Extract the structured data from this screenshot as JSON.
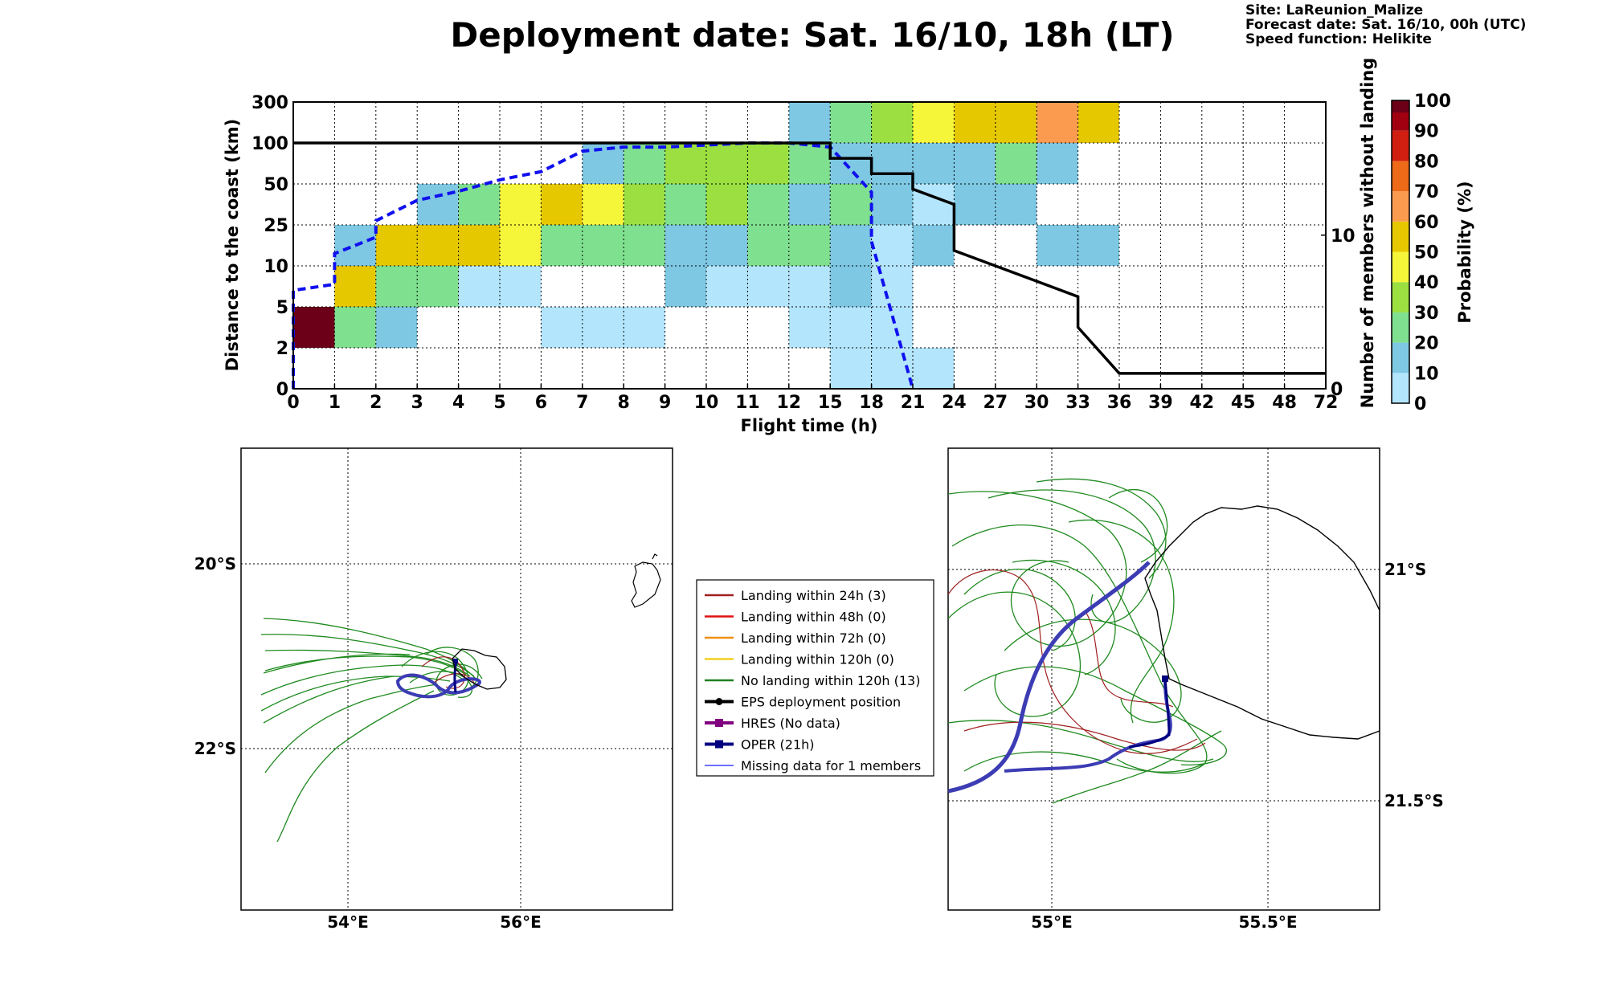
{
  "title": "Deployment date: Sat. 16/10, 18h (LT)",
  "info": {
    "site": "Site: LaReunion_Malize",
    "forecast": "Forecast date: Sat. 16/10, 00h (UTC)",
    "speed": "Speed function: Helikite"
  },
  "chart_data": {
    "type": "heatmap",
    "xlabel": "Flight time (h)",
    "ylabel": "Distance to the coast (km)",
    "ylabel_right": "Number of members without landing",
    "x_ticks": [
      "0",
      "1",
      "2",
      "3",
      "4",
      "5",
      "6",
      "7",
      "8",
      "9",
      "10",
      "11",
      "12",
      "15",
      "18",
      "21",
      "24",
      "27",
      "30",
      "33",
      "36",
      "39",
      "42",
      "45",
      "48",
      "72"
    ],
    "y_ticks": [
      "0",
      "2",
      "5",
      "10",
      "25",
      "50",
      "100",
      "300"
    ],
    "right_ticks": [
      "0",
      "10"
    ],
    "grid": true,
    "colorbar": {
      "label": "Probability (%)",
      "ticks": [
        "0",
        "10",
        "20",
        "30",
        "40",
        "50",
        "60",
        "70",
        "80",
        "90",
        "100"
      ],
      "bins": [
        {
          "range": [
            0,
            10
          ],
          "color": "#b3e5fc"
        },
        {
          "range": [
            10,
            20
          ],
          "color": "#7ec8e3"
        },
        {
          "range": [
            20,
            30
          ],
          "color": "#7fe08f"
        },
        {
          "range": [
            30,
            40
          ],
          "color": "#9be040"
        },
        {
          "range": [
            40,
            50
          ],
          "color": "#f5f53a"
        },
        {
          "range": [
            50,
            60
          ],
          "color": "#e6c800"
        },
        {
          "range": [
            60,
            70
          ],
          "color": "#fb9b50"
        },
        {
          "range": [
            70,
            80
          ],
          "color": "#ec6a18"
        },
        {
          "range": [
            80,
            90
          ],
          "color": "#d01f10"
        },
        {
          "range": [
            90,
            100
          ],
          "color": "#a00010"
        },
        {
          "range": [
            100,
            100
          ],
          "color": "#6b0018"
        }
      ]
    },
    "cells": [
      {
        "x": [
          "0",
          "1"
        ],
        "y": [
          "2",
          "5"
        ],
        "bin": 10
      },
      {
        "x": [
          "1",
          "2"
        ],
        "y": [
          "2",
          "5"
        ],
        "bin": 2
      },
      {
        "x": [
          "2",
          "3"
        ],
        "y": [
          "2",
          "5"
        ],
        "bin": 1
      },
      {
        "x": [
          "6",
          "9"
        ],
        "y": [
          "2",
          "5"
        ],
        "bin": 0
      },
      {
        "x": [
          "12",
          "21"
        ],
        "y": [
          "2",
          "5"
        ],
        "bin": 0
      },
      {
        "x": [
          "15",
          "24"
        ],
        "y": [
          "0",
          "2"
        ],
        "bin": 0
      },
      {
        "x": [
          "1",
          "2"
        ],
        "y": [
          "5",
          "10"
        ],
        "bin": 5
      },
      {
        "x": [
          "2",
          "4"
        ],
        "y": [
          "5",
          "10"
        ],
        "bin": 2
      },
      {
        "x": [
          "4",
          "6"
        ],
        "y": [
          "5",
          "10"
        ],
        "bin": 0
      },
      {
        "x": [
          "9",
          "10"
        ],
        "y": [
          "5",
          "10"
        ],
        "bin": 1
      },
      {
        "x": [
          "10",
          "12"
        ],
        "y": [
          "5",
          "10"
        ],
        "bin": 0
      },
      {
        "x": [
          "12",
          "15"
        ],
        "y": [
          "5",
          "10"
        ],
        "bin": 0
      },
      {
        "x": [
          "15",
          "18"
        ],
        "y": [
          "5",
          "10"
        ],
        "bin": 1
      },
      {
        "x": [
          "18",
          "21"
        ],
        "y": [
          "5",
          "10"
        ],
        "bin": 0
      },
      {
        "x": [
          "1",
          "2"
        ],
        "y": [
          "10",
          "25"
        ],
        "bin": 1
      },
      {
        "x": [
          "2",
          "5"
        ],
        "y": [
          "10",
          "25"
        ],
        "bin": 5
      },
      {
        "x": [
          "5",
          "6"
        ],
        "y": [
          "10",
          "25"
        ],
        "bin": 4
      },
      {
        "x": [
          "6",
          "9"
        ],
        "y": [
          "10",
          "25"
        ],
        "bin": 2
      },
      {
        "x": [
          "9",
          "11"
        ],
        "y": [
          "10",
          "25"
        ],
        "bin": 1
      },
      {
        "x": [
          "11",
          "12"
        ],
        "y": [
          "10",
          "25"
        ],
        "bin": 2
      },
      {
        "x": [
          "12",
          "15"
        ],
        "y": [
          "10",
          "25"
        ],
        "bin": 2
      },
      {
        "x": [
          "15",
          "18"
        ],
        "y": [
          "10",
          "25"
        ],
        "bin": 1
      },
      {
        "x": [
          "18",
          "21"
        ],
        "y": [
          "10",
          "25"
        ],
        "bin": 0
      },
      {
        "x": [
          "21",
          "24"
        ],
        "y": [
          "10",
          "25"
        ],
        "bin": 1
      },
      {
        "x": [
          "30",
          "36"
        ],
        "y": [
          "10",
          "25"
        ],
        "bin": 1
      },
      {
        "x": [
          "3",
          "4"
        ],
        "y": [
          "25",
          "50"
        ],
        "bin": 1
      },
      {
        "x": [
          "4",
          "5"
        ],
        "y": [
          "25",
          "50"
        ],
        "bin": 2
      },
      {
        "x": [
          "5",
          "6"
        ],
        "y": [
          "25",
          "50"
        ],
        "bin": 4
      },
      {
        "x": [
          "6",
          "7"
        ],
        "y": [
          "25",
          "50"
        ],
        "bin": 5
      },
      {
        "x": [
          "7",
          "8"
        ],
        "y": [
          "25",
          "50"
        ],
        "bin": 4
      },
      {
        "x": [
          "8",
          "9"
        ],
        "y": [
          "25",
          "50"
        ],
        "bin": 3
      },
      {
        "x": [
          "9",
          "10"
        ],
        "y": [
          "25",
          "50"
        ],
        "bin": 2
      },
      {
        "x": [
          "10",
          "11"
        ],
        "y": [
          "25",
          "50"
        ],
        "bin": 3
      },
      {
        "x": [
          "11",
          "12"
        ],
        "y": [
          "25",
          "50"
        ],
        "bin": 2
      },
      {
        "x": [
          "12",
          "15"
        ],
        "y": [
          "25",
          "50"
        ],
        "bin": 1
      },
      {
        "x": [
          "15",
          "18"
        ],
        "y": [
          "25",
          "50"
        ],
        "bin": 2
      },
      {
        "x": [
          "18",
          "21"
        ],
        "y": [
          "25",
          "50"
        ],
        "bin": 1
      },
      {
        "x": [
          "21",
          "24"
        ],
        "y": [
          "25",
          "50"
        ],
        "bin": 0
      },
      {
        "x": [
          "24",
          "30"
        ],
        "y": [
          "25",
          "50"
        ],
        "bin": 1
      },
      {
        "x": [
          "7",
          "8"
        ],
        "y": [
          "50",
          "100"
        ],
        "bin": 1
      },
      {
        "x": [
          "8",
          "9"
        ],
        "y": [
          "50",
          "100"
        ],
        "bin": 2
      },
      {
        "x": [
          "9",
          "12"
        ],
        "y": [
          "50",
          "100"
        ],
        "bin": 3
      },
      {
        "x": [
          "12",
          "15"
        ],
        "y": [
          "50",
          "100"
        ],
        "bin": 2
      },
      {
        "x": [
          "15",
          "18"
        ],
        "y": [
          "50",
          "100"
        ],
        "bin": 1
      },
      {
        "x": [
          "18",
          "27"
        ],
        "y": [
          "50",
          "100"
        ],
        "bin": 1
      },
      {
        "x": [
          "27",
          "30"
        ],
        "y": [
          "50",
          "100"
        ],
        "bin": 2
      },
      {
        "x": [
          "30",
          "33"
        ],
        "y": [
          "50",
          "100"
        ],
        "bin": 1
      },
      {
        "x": [
          "12",
          "15"
        ],
        "y": [
          "100",
          "300"
        ],
        "bin": 1
      },
      {
        "x": [
          "15",
          "18"
        ],
        "y": [
          "100",
          "300"
        ],
        "bin": 2
      },
      {
        "x": [
          "18",
          "21"
        ],
        "y": [
          "100",
          "300"
        ],
        "bin": 3
      },
      {
        "x": [
          "21",
          "24"
        ],
        "y": [
          "100",
          "300"
        ],
        "bin": 4
      },
      {
        "x": [
          "24",
          "30"
        ],
        "y": [
          "100",
          "300"
        ],
        "bin": 5
      },
      {
        "x": [
          "30",
          "33"
        ],
        "y": [
          "100",
          "300"
        ],
        "bin": 6
      },
      {
        "x": [
          "33",
          "36"
        ],
        "y": [
          "100",
          "300"
        ],
        "bin": 5
      }
    ],
    "series": [
      {
        "style": "dashed",
        "color": "#1010ee",
        "axis": "left",
        "points": [
          {
            "x": "0",
            "y": "0",
            "f": 0
          },
          {
            "x": "0",
            "y": "5",
            "f": 0.1
          },
          {
            "x": "0",
            "y": "5",
            "f": 0.4
          },
          {
            "x": "1",
            "y": "5",
            "f": 0.55
          },
          {
            "x": "1",
            "y": "10",
            "f": 0.3
          },
          {
            "x": "2",
            "y": "10",
            "f": 0.7
          },
          {
            "x": "2",
            "y": "25",
            "f": 0.1
          },
          {
            "x": "3",
            "y": "25",
            "f": 0.6
          },
          {
            "x": "4",
            "y": "25",
            "f": 0.82
          },
          {
            "x": "5",
            "y": "50",
            "f": 0.1
          },
          {
            "x": "6",
            "y": "50",
            "f": 0.3
          },
          {
            "x": "7",
            "y": "50",
            "f": 0.8
          },
          {
            "x": "8",
            "y": "50",
            "f": 0.9
          },
          {
            "x": "9",
            "y": "50",
            "f": 0.9
          },
          {
            "x": "10",
            "y": "50",
            "f": 0.95
          },
          {
            "x": "11",
            "y": "50",
            "f": 1.0
          },
          {
            "x": "12",
            "y": "100",
            "f": 0.0
          },
          {
            "x": "15",
            "y": "50",
            "f": 0.9
          },
          {
            "x": "18",
            "y": "25",
            "f": 0.8
          },
          {
            "x": "18",
            "y": "25",
            "f": 0.4
          },
          {
            "x": "18",
            "y": "10",
            "f": 0.95
          },
          {
            "x": "18",
            "y": "10",
            "f": 0.6
          },
          {
            "x": "21",
            "y": "0",
            "f": 0.0
          }
        ]
      },
      {
        "style": "solid",
        "color": "#000000",
        "axis": "right",
        "points": [
          {
            "x": "0",
            "count": 16
          },
          {
            "x": "15",
            "count": 16
          },
          {
            "x": "15",
            "count": 15
          },
          {
            "x": "18",
            "count": 15
          },
          {
            "x": "18",
            "count": 14
          },
          {
            "x": "21",
            "count": 14
          },
          {
            "x": "21",
            "count": 13
          },
          {
            "x": "24",
            "count": 12
          },
          {
            "x": "24",
            "count": 11
          },
          {
            "x": "24",
            "count": 10
          },
          {
            "x": "24",
            "count": 9
          },
          {
            "x": "27",
            "count": 8
          },
          {
            "x": "30",
            "count": 7
          },
          {
            "x": "33",
            "count": 6
          },
          {
            "x": "33",
            "count": 5
          },
          {
            "x": "33",
            "count": 4
          },
          {
            "x": "36",
            "count": 1
          },
          {
            "x": "72",
            "count": 1
          }
        ]
      }
    ]
  },
  "map_left": {
    "lon_ticks": [
      "54°E",
      "56°E"
    ],
    "lat_ticks": [
      "20°S",
      "22°S"
    ]
  },
  "map_right": {
    "lon_ticks": [
      "55°E",
      "55.5°E"
    ],
    "lat_ticks": [
      "21°S",
      "21.5°S"
    ]
  },
  "legend": [
    {
      "label": "Landing within 24h (3)",
      "color": "#a02020",
      "kind": "line"
    },
    {
      "label": "Landing within 48h (0)",
      "color": "#e01010",
      "kind": "line"
    },
    {
      "label": "Landing within 72h (0)",
      "color": "#f09010",
      "kind": "line"
    },
    {
      "label": "Landing within 120h (0)",
      "color": "#f0d020",
      "kind": "line"
    },
    {
      "label": "No landing within 120h (13)",
      "color": "#208020",
      "kind": "line"
    },
    {
      "label": "EPS deployment position",
      "color": "#000000",
      "kind": "dot"
    },
    {
      "label": "HRES (No data)",
      "color": "#800080",
      "kind": "square"
    },
    {
      "label": "OPER (21h)",
      "color": "#000080",
      "kind": "square"
    },
    {
      "label": "Missing data for 1 members",
      "color": "#4040ff",
      "kind": "thin"
    }
  ]
}
